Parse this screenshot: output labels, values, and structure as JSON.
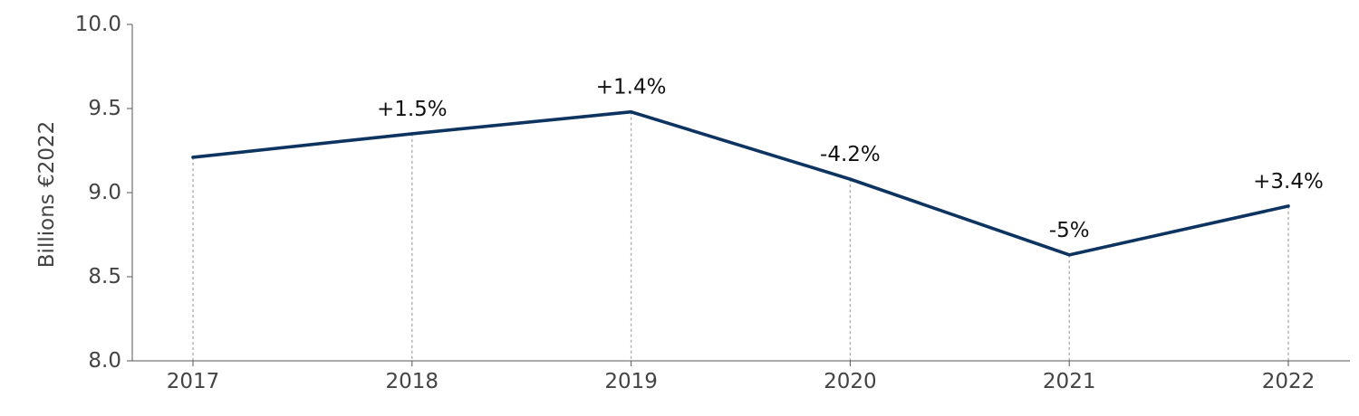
{
  "chart_data": {
    "type": "line",
    "ylabel": "Billions €2022",
    "xlabel": "",
    "title": "",
    "categories": [
      "2017",
      "2018",
      "2019",
      "2020",
      "2021",
      "2022"
    ],
    "ylim": [
      8.0,
      10.0
    ],
    "yticks": [
      "8.0",
      "8.5",
      "9.0",
      "9.5",
      "10.0"
    ],
    "series": [
      {
        "values": [
          9.21,
          9.35,
          9.48,
          9.08,
          8.63,
          8.92
        ],
        "color": "#0d3461"
      }
    ],
    "data_labels": [
      "",
      "+1.5%",
      "+1.4%",
      "-4.2%",
      "-5%",
      "+3.4%"
    ],
    "grid": false,
    "vertical_guides": "dotted"
  }
}
